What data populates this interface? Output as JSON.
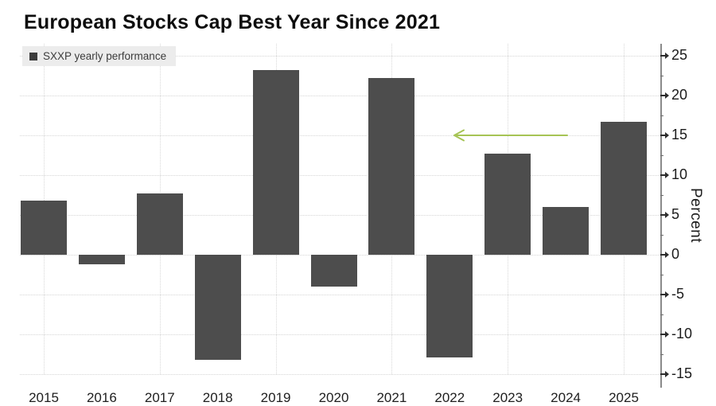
{
  "header": {
    "title": "European Stocks Cap Best Year Since 2021"
  },
  "chart_data": {
    "type": "bar",
    "title": "European Stocks Cap Best Year Since 2021",
    "legend_label": "SXXP yearly performance",
    "legend_position": "top-left",
    "ylabel": "Percent",
    "xlabel": "",
    "categories": [
      "2015",
      "2016",
      "2017",
      "2018",
      "2019",
      "2020",
      "2021",
      "2022",
      "2023",
      "2024",
      "2025"
    ],
    "values": [
      6.8,
      -1.2,
      7.7,
      -13.2,
      23.2,
      -4.0,
      22.2,
      -12.9,
      12.7,
      6.0,
      16.7
    ],
    "ylim": [
      -15,
      25
    ],
    "ytick_major_step": 5,
    "ytick_labels": [
      "-15",
      "-10",
      "-5",
      "0",
      "5",
      "10",
      "15",
      "20",
      "25"
    ],
    "ytick_minor_values": [
      -12.5,
      -7.5,
      -2.5,
      2.5,
      7.5,
      12.5,
      17.5,
      22.5
    ],
    "grid": true,
    "gridline_years": [
      "2015",
      "2017",
      "2019",
      "2021",
      "2023",
      "2025"
    ],
    "bar_color": "#4d4d4d",
    "grid_color": "#d5d5d5",
    "background_color": "#ffffff",
    "annotation": {
      "type": "arrow",
      "direction": "left",
      "y_value": 15,
      "color": "#a6c455",
      "description": "left-pointing arrow at the 15 percent level, spanning from above the 2023 bar back toward the 2021 bar"
    }
  }
}
